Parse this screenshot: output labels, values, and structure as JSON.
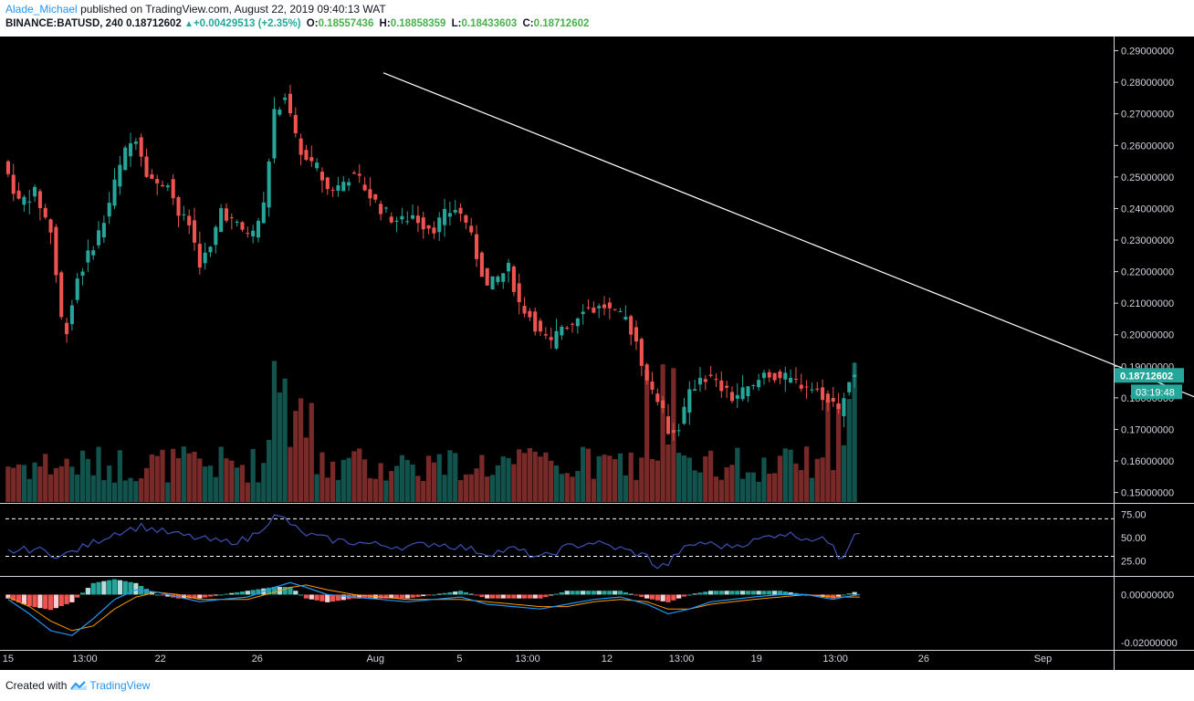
{
  "header": {
    "author": "Alade_Michael",
    "published_text": "published on TradingView.com, August 22, 2019 09:40:13 WAT",
    "symbol": "BINANCE:BATUSD, 240",
    "last_price": "0.18712602",
    "change": "+0.00429513 (+2.35%)",
    "open_label": "O:",
    "open": "0.18557436",
    "high_label": "H:",
    "high": "0.18858359",
    "low_label": "L:",
    "low": "0.18433603",
    "close_label": "C:",
    "close": "0.18712602"
  },
  "footer": {
    "created_with": "Created with",
    "brand": "TradingView"
  },
  "colors": {
    "background": "#000000",
    "up": "#26a69a",
    "down": "#ef5350",
    "rsi": "#3f51b5",
    "macd": "#2196f3",
    "signal": "#ff9800",
    "trendline": "#ffffff"
  },
  "chart_data": {
    "type": "candlestick",
    "price_axis": {
      "range": [
        0.147,
        0.2945
      ],
      "ticks": [
        "0.29000000",
        "0.28000000",
        "0.27000000",
        "0.26000000",
        "0.25000000",
        "0.24000000",
        "0.23000000",
        "0.22000000",
        "0.21000000",
        "0.20000000",
        "0.19000000",
        "0.18000000",
        "0.17000000",
        "0.16000000",
        "0.15000000"
      ]
    },
    "last_price_tag": "0.18712602",
    "countdown_tag": "03:19:48",
    "time_axis": [
      "15",
      "13:00",
      "22",
      "26",
      "Aug",
      "5",
      "13:00",
      "12",
      "13:00",
      "19",
      "13:00",
      "26",
      "Sep"
    ],
    "price_path": [
      [
        0,
        0.255
      ],
      [
        3,
        0.242
      ],
      [
        6,
        0.245
      ],
      [
        9,
        0.233
      ],
      [
        11,
        0.205
      ],
      [
        12,
        0.202
      ],
      [
        14,
        0.218
      ],
      [
        16,
        0.225
      ],
      [
        19,
        0.236
      ],
      [
        21,
        0.248
      ],
      [
        23,
        0.258
      ],
      [
        25,
        0.263
      ],
      [
        27,
        0.252
      ],
      [
        29,
        0.247
      ],
      [
        31,
        0.249
      ],
      [
        33,
        0.238
      ],
      [
        35,
        0.235
      ],
      [
        37,
        0.223
      ],
      [
        39,
        0.227
      ],
      [
        41,
        0.24
      ],
      [
        43,
        0.236
      ],
      [
        45,
        0.233
      ],
      [
        47,
        0.232
      ],
      [
        49,
        0.241
      ],
      [
        51,
        0.27
      ],
      [
        53,
        0.276
      ],
      [
        55,
        0.262
      ],
      [
        57,
        0.255
      ],
      [
        59,
        0.253
      ],
      [
        61,
        0.246
      ],
      [
        63,
        0.247
      ],
      [
        65,
        0.25
      ],
      [
        67,
        0.249
      ],
      [
        69,
        0.244
      ],
      [
        71,
        0.24
      ],
      [
        73,
        0.237
      ],
      [
        75,
        0.236
      ],
      [
        77,
        0.238
      ],
      [
        79,
        0.235
      ],
      [
        81,
        0.234
      ],
      [
        83,
        0.238
      ],
      [
        85,
        0.24
      ],
      [
        87,
        0.236
      ],
      [
        89,
        0.225
      ],
      [
        91,
        0.215
      ],
      [
        93,
        0.218
      ],
      [
        95,
        0.221
      ],
      [
        97,
        0.21
      ],
      [
        99,
        0.206
      ],
      [
        101,
        0.2
      ],
      [
        103,
        0.197
      ],
      [
        105,
        0.203
      ],
      [
        107,
        0.204
      ],
      [
        109,
        0.209
      ],
      [
        111,
        0.208
      ],
      [
        113,
        0.209
      ],
      [
        115,
        0.206
      ],
      [
        117,
        0.205
      ],
      [
        119,
        0.198
      ],
      [
        121,
        0.185
      ],
      [
        123,
        0.18
      ],
      [
        125,
        0.17
      ],
      [
        127,
        0.171
      ],
      [
        129,
        0.181
      ],
      [
        131,
        0.187
      ],
      [
        133,
        0.186
      ],
      [
        135,
        0.183
      ],
      [
        137,
        0.18
      ],
      [
        139,
        0.182
      ],
      [
        141,
        0.183
      ],
      [
        143,
        0.188
      ],
      [
        145,
        0.187
      ],
      [
        147,
        0.186
      ],
      [
        149,
        0.185
      ],
      [
        151,
        0.184
      ],
      [
        153,
        0.182
      ],
      [
        155,
        0.18
      ],
      [
        156,
        0.177
      ],
      [
        157,
        0.175
      ],
      [
        158,
        0.181
      ],
      [
        159,
        0.1856
      ],
      [
        160,
        0.1871
      ]
    ],
    "volume_scale": 0.33,
    "rsi": {
      "levels": [
        25,
        50,
        75
      ],
      "upper_band": 70,
      "lower_band": 30,
      "tick_labels": [
        "75.00",
        "50.00",
        "25.00"
      ],
      "last": 58,
      "path": [
        [
          0,
          35
        ],
        [
          5,
          38
        ],
        [
          10,
          30
        ],
        [
          15,
          42
        ],
        [
          20,
          55
        ],
        [
          25,
          62
        ],
        [
          30,
          55
        ],
        [
          35,
          50
        ],
        [
          40,
          45
        ],
        [
          45,
          48
        ],
        [
          50,
          72
        ],
        [
          52,
          70
        ],
        [
          55,
          55
        ],
        [
          60,
          48
        ],
        [
          65,
          45
        ],
        [
          70,
          42
        ],
        [
          75,
          40
        ],
        [
          80,
          44
        ],
        [
          85,
          40
        ],
        [
          90,
          33
        ],
        [
          95,
          38
        ],
        [
          100,
          28
        ],
        [
          105,
          40
        ],
        [
          110,
          45
        ],
        [
          115,
          38
        ],
        [
          120,
          30
        ],
        [
          122,
          18
        ],
        [
          124,
          22
        ],
        [
          126,
          35
        ],
        [
          130,
          45
        ],
        [
          135,
          40
        ],
        [
          140,
          46
        ],
        [
          145,
          55
        ],
        [
          150,
          50
        ],
        [
          155,
          45
        ],
        [
          156,
          30
        ],
        [
          157,
          32
        ],
        [
          159,
          55
        ],
        [
          160,
          58
        ]
      ]
    },
    "macd": {
      "tick_labels": [
        "0.00000000",
        "-0.02000000"
      ],
      "range": [
        -0.023,
        0.007
      ],
      "macd_path": [
        [
          0,
          -0.002
        ],
        [
          4,
          -0.008
        ],
        [
          8,
          -0.015
        ],
        [
          12,
          -0.017
        ],
        [
          16,
          -0.01
        ],
        [
          20,
          -0.002
        ],
        [
          24,
          0.002
        ],
        [
          28,
          0.001
        ],
        [
          32,
          -0.001
        ],
        [
          36,
          -0.003
        ],
        [
          40,
          -0.002
        ],
        [
          45,
          -0.001
        ],
        [
          50,
          0.003
        ],
        [
          53,
          0.005
        ],
        [
          56,
          0.003
        ],
        [
          60,
          0.0
        ],
        [
          65,
          -0.001
        ],
        [
          70,
          -0.002
        ],
        [
          75,
          -0.003
        ],
        [
          80,
          -0.002
        ],
        [
          85,
          -0.001
        ],
        [
          90,
          -0.004
        ],
        [
          95,
          -0.005
        ],
        [
          100,
          -0.006
        ],
        [
          105,
          -0.004
        ],
        [
          110,
          -0.002
        ],
        [
          115,
          -0.001
        ],
        [
          120,
          -0.004
        ],
        [
          124,
          -0.008
        ],
        [
          128,
          -0.006
        ],
        [
          132,
          -0.003
        ],
        [
          136,
          -0.002
        ],
        [
          140,
          -0.001
        ],
        [
          145,
          0.0
        ],
        [
          150,
          0.0
        ],
        [
          155,
          -0.002
        ],
        [
          157,
          -0.001
        ],
        [
          160,
          0.0
        ]
      ],
      "signal_path": [
        [
          0,
          -0.001
        ],
        [
          4,
          -0.005
        ],
        [
          8,
          -0.011
        ],
        [
          12,
          -0.015
        ],
        [
          16,
          -0.013
        ],
        [
          20,
          -0.006
        ],
        [
          24,
          -0.001
        ],
        [
          28,
          0.001
        ],
        [
          32,
          0.0
        ],
        [
          36,
          -0.002
        ],
        [
          40,
          -0.002
        ],
        [
          45,
          -0.002
        ],
        [
          50,
          0.001
        ],
        [
          53,
          0.003
        ],
        [
          56,
          0.004
        ],
        [
          60,
          0.002
        ],
        [
          65,
          0.0
        ],
        [
          70,
          -0.001
        ],
        [
          75,
          -0.002
        ],
        [
          80,
          -0.002
        ],
        [
          85,
          -0.002
        ],
        [
          90,
          -0.003
        ],
        [
          95,
          -0.004
        ],
        [
          100,
          -0.005
        ],
        [
          105,
          -0.005
        ],
        [
          110,
          -0.003
        ],
        [
          115,
          -0.002
        ],
        [
          120,
          -0.003
        ],
        [
          124,
          -0.006
        ],
        [
          128,
          -0.006
        ],
        [
          132,
          -0.004
        ],
        [
          136,
          -0.003
        ],
        [
          140,
          -0.002
        ],
        [
          145,
          -0.001
        ],
        [
          150,
          0.0
        ],
        [
          155,
          -0.001
        ],
        [
          157,
          -0.001
        ],
        [
          160,
          -0.001
        ]
      ]
    },
    "trendline": [
      [
        70.5,
        0.283
      ],
      [
        230,
        0.1755
      ]
    ]
  }
}
